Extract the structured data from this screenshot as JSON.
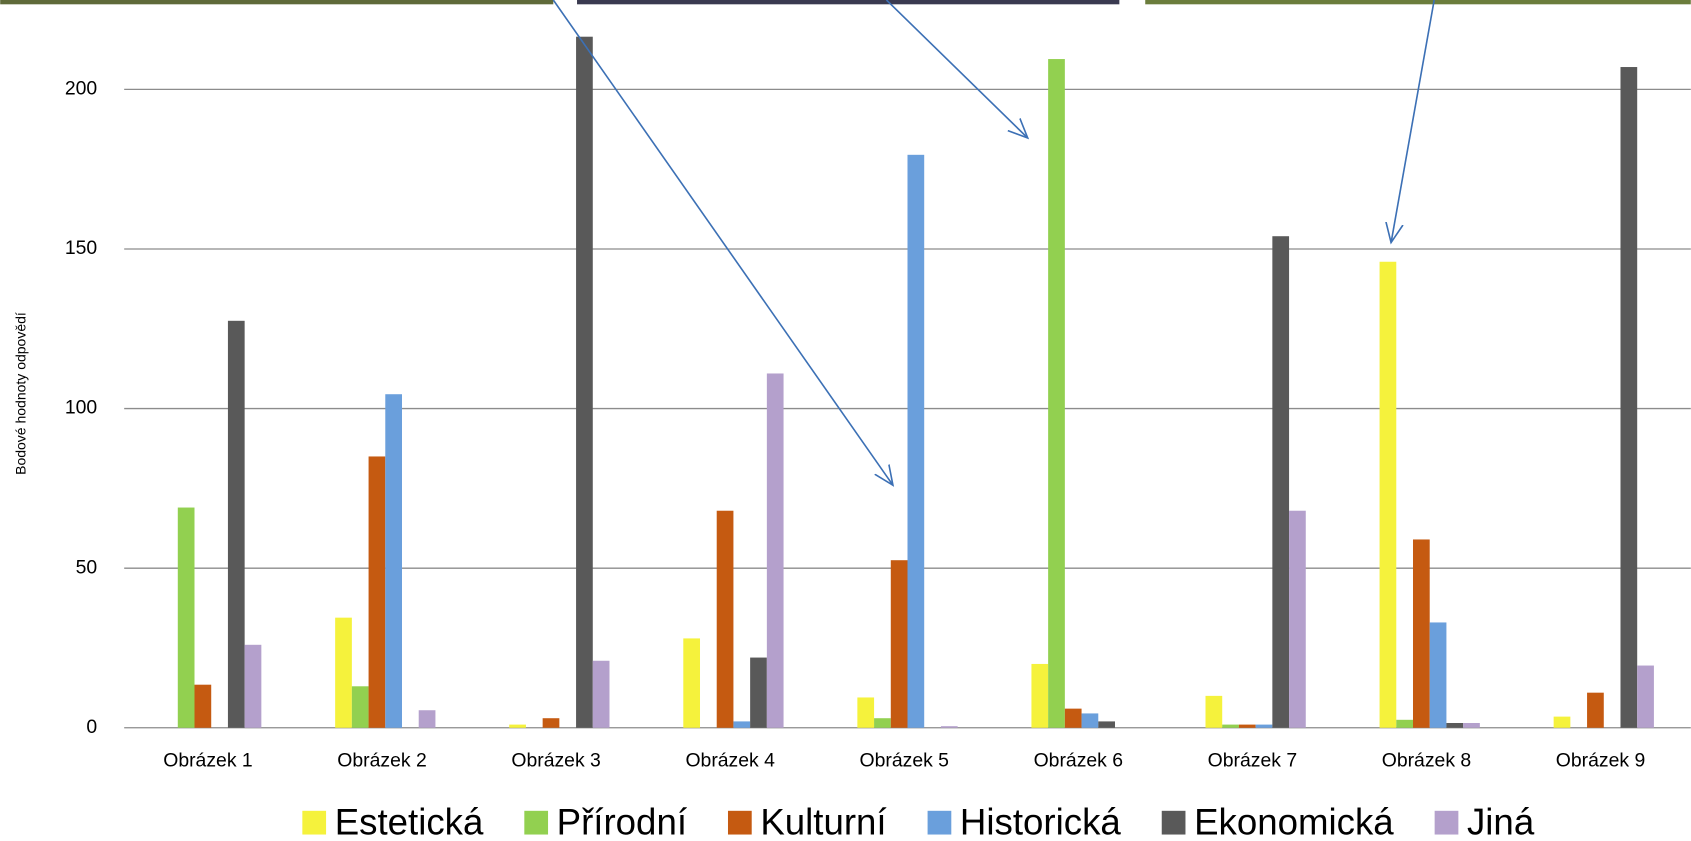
{
  "chart_data": {
    "type": "bar",
    "y_label": "Bodové hodnoty odpovědí",
    "categories": [
      "Obrázek 1",
      "Obrázek 2",
      "Obrázek 3",
      "Obrázek 4",
      "Obrázek 5",
      "Obrázek 6",
      "Obrázek 7",
      "Obrázek 8",
      "Obrázek 9"
    ],
    "series": [
      {
        "name": "Estetická",
        "color": "#f5f23c",
        "values": [
          0,
          34.5,
          1,
          28,
          9.5,
          20,
          10,
          146,
          3.5
        ]
      },
      {
        "name": "Přírodní",
        "color": "#92d050",
        "values": [
          69,
          13,
          0,
          0,
          3,
          209.5,
          1,
          2.5,
          0
        ]
      },
      {
        "name": "Kulturní",
        "color": "#c55a11",
        "values": [
          13.5,
          85,
          3,
          68,
          52.5,
          6,
          1,
          59,
          11
        ]
      },
      {
        "name": "Historická",
        "color": "#6a9fdc",
        "values": [
          0,
          104.5,
          0,
          2,
          179.5,
          4.5,
          1,
          33,
          0
        ]
      },
      {
        "name": "Ekonomická",
        "color": "#595959",
        "values": [
          127.5,
          0,
          216.5,
          22,
          0,
          2,
          154,
          1.5,
          207
        ]
      },
      {
        "name": "Jiná",
        "color": "#b4a0cc",
        "values": [
          26,
          5.5,
          21,
          111,
          0.5,
          0,
          68,
          1.5,
          19.5
        ]
      }
    ],
    "ylim": [
      0,
      228
    ],
    "yticks": [
      0,
      50,
      100,
      150,
      200
    ],
    "grid": true,
    "legend": "bottom"
  }
}
